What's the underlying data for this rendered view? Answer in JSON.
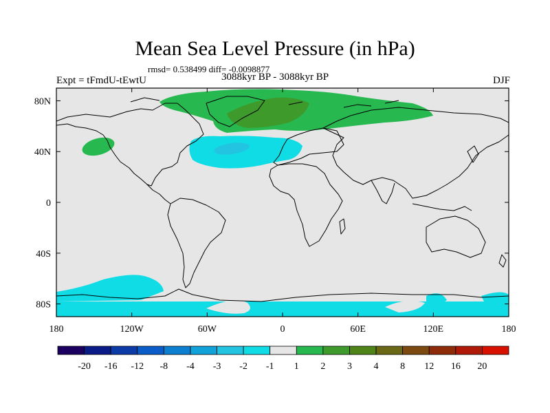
{
  "title": "Mean Sea Level Pressure (in hPa)",
  "stats": "rmsd= 0.538499 diff= -0.0098877",
  "experiment": "Expt = tFmdU-tEwtU",
  "period": "3088kyr BP - 3088kyr BP",
  "season": "DJF",
  "map": {
    "lon_ticks": [
      {
        "lon": -180,
        "label": "180"
      },
      {
        "lon": -120,
        "label": "120W"
      },
      {
        "lon": -60,
        "label": "60W"
      },
      {
        "lon": 0,
        "label": "0"
      },
      {
        "lon": 60,
        "label": "60E"
      },
      {
        "lon": 120,
        "label": "120E"
      },
      {
        "lon": 180,
        "label": "180"
      }
    ],
    "lat_ticks": [
      {
        "lat": 80,
        "label": "80N"
      },
      {
        "lat": 40,
        "label": "40N"
      },
      {
        "lat": 0,
        "label": "0"
      },
      {
        "lat": -40,
        "label": "40S"
      },
      {
        "lat": -80,
        "label": "80S"
      }
    ],
    "lat_range": [
      -90,
      90
    ],
    "lon_range": [
      -180,
      180
    ],
    "background_color": "#e6e6e6"
  },
  "colorbar": {
    "colors": [
      "#1c0060",
      "#0a1a86",
      "#0c3aa6",
      "#0a5cc8",
      "#0c7fd0",
      "#12a2da",
      "#22c4e2",
      "#10dce6",
      "#e6e6e6",
      "#28b850",
      "#3e9a2a",
      "#4e8418",
      "#6a6814",
      "#7c4a10",
      "#8e2c0a",
      "#b01808",
      "#d81000"
    ],
    "labels": [
      "-20",
      "-16",
      "-12",
      "-8",
      "-4",
      "-3",
      "-2",
      "-1",
      "1",
      "2",
      "3",
      "4",
      "8",
      "12",
      "16",
      "20"
    ]
  },
  "colors": {
    "land_outline": "#000000",
    "negative_light": "#10dce6",
    "negative_mid": "#22c4e2",
    "positive_light": "#28b850",
    "positive_dark": "#3e9a2a"
  }
}
